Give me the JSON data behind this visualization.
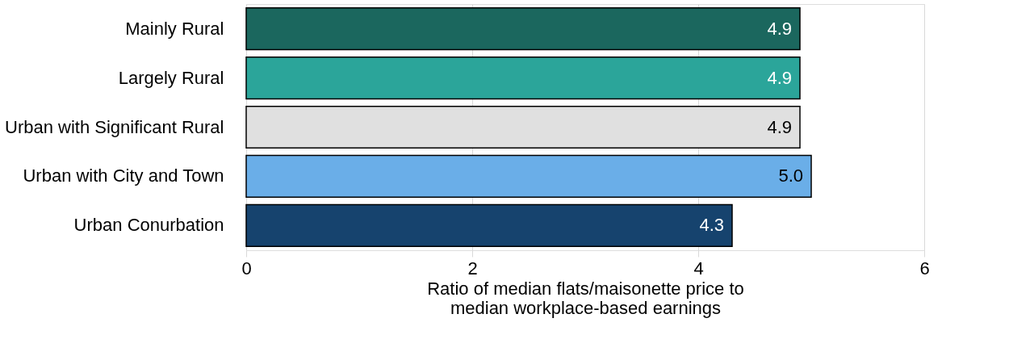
{
  "chart_data": {
    "type": "bar",
    "orientation": "horizontal",
    "categories": [
      "Mainly Rural",
      "Largely Rural",
      "Urban with Significant Rural",
      "Urban with City and Town",
      "Urban Conurbation"
    ],
    "values": [
      4.9,
      4.9,
      4.9,
      5.0,
      4.3
    ],
    "value_labels": [
      "4.9",
      "4.9",
      "4.9",
      "5.0",
      "4.3"
    ],
    "colors": [
      "#1b675e",
      "#2ba59a",
      "#e0e0e0",
      "#6aaee8",
      "#16436e"
    ],
    "xlim": [
      0,
      6
    ],
    "xticks": [
      0,
      2,
      4,
      6
    ],
    "xlabel": "Ratio of median flats/maisonette price to\nmedian workplace-based earnings",
    "grid": "x"
  }
}
